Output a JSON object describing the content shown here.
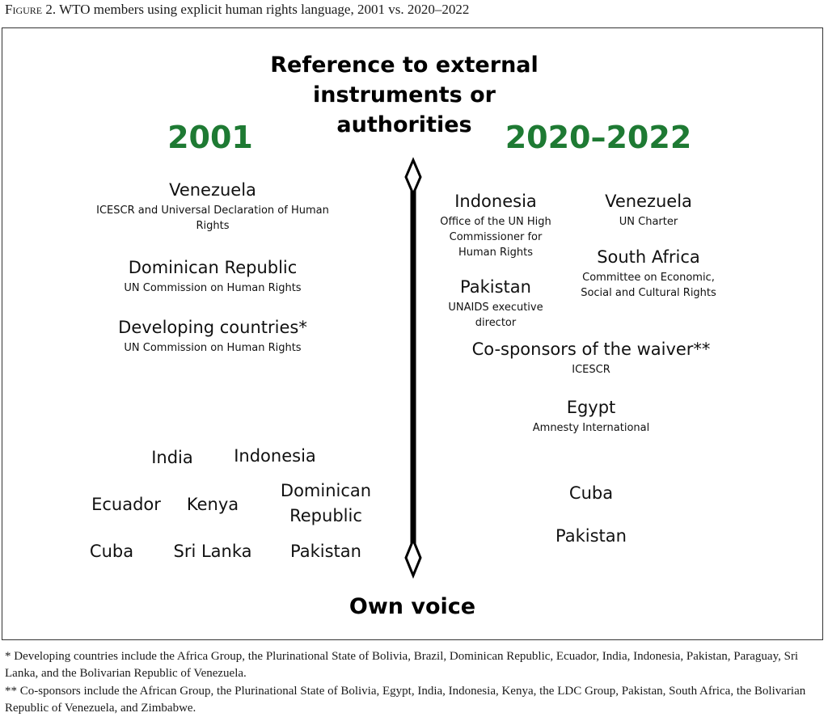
{
  "caption": {
    "label": "Figure 2.",
    "text": "WTO members using explicit human rights language, 2001 vs. 2020–2022"
  },
  "axis": {
    "top_label": "Reference to external instruments or authorities",
    "bottom_label": "Own voice"
  },
  "years": {
    "left": "2001",
    "right": "2020–2022"
  },
  "left_external": [
    {
      "name": "Venezuela",
      "ref": "ICESCR and Universal Declaration of Human Rights"
    },
    {
      "name": "Dominican Republic",
      "ref": "UN Commission on Human Rights"
    },
    {
      "name": "Developing countries*",
      "ref": "UN Commission on Human Rights"
    }
  ],
  "left_own": [
    "India",
    "Indonesia",
    "Ecuador",
    "Kenya",
    "Dominican Republic",
    "Cuba",
    "Sri Lanka",
    "Pakistan"
  ],
  "right_external": [
    {
      "name": "Indonesia",
      "ref": "Office of the UN High Commissioner for Human Rights"
    },
    {
      "name": "Venezuela",
      "ref": "UN Charter"
    },
    {
      "name": "South Africa",
      "ref": "Committee on Economic, Social and Cultural Rights"
    },
    {
      "name": "Pakistan",
      "ref": "UNAIDS executive director"
    },
    {
      "name": "Co-sponsors of the waiver**",
      "ref": "ICESCR"
    },
    {
      "name": "Egypt",
      "ref": "Amnesty International"
    }
  ],
  "right_own": [
    "Cuba",
    "Pakistan"
  ],
  "footnotes": [
    "* Developing countries include the Africa Group, the Plurinational State of Bolivia, Brazil, Dominican Republic, Ecuador, India, Indonesia, Pakistan, Paraguay, Sri Lanka, and the Bolivarian Republic of Venezuela.",
    "** Co-sponsors include the African Group, the Plurinational State of Bolivia, Egypt, India, Indonesia, Kenya, the LDC Group, Pakistan, South Africa, the Bolivarian Republic of Venezuela, and Zimbabwe."
  ],
  "colors": {
    "year_green": "#1e7a33",
    "axis_black": "#000000"
  }
}
